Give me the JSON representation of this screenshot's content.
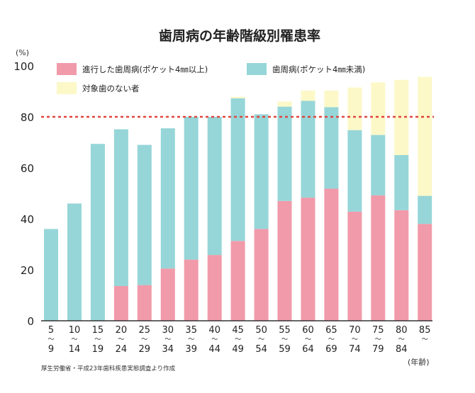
{
  "chart_data": {
    "type": "bar",
    "stacked": true,
    "title": "歯周病の年齢階級別罹患率",
    "ylabel": "(%)",
    "xlabel": "(年齢)",
    "ylim": [
      0,
      100
    ],
    "yticks": [
      0,
      20,
      40,
      60,
      80,
      100
    ],
    "grid": false,
    "legend_position": "top",
    "reference_line": {
      "value": 80,
      "style": "dotted",
      "color": "#e0463f"
    },
    "categories": [
      [
        "5",
        "〜",
        "9"
      ],
      [
        "10",
        "〜",
        "14"
      ],
      [
        "15",
        "〜",
        "19"
      ],
      [
        "20",
        "〜",
        "24"
      ],
      [
        "25",
        "〜",
        "29"
      ],
      [
        "30",
        "〜",
        "34"
      ],
      [
        "35",
        "〜",
        "39"
      ],
      [
        "40",
        "〜",
        "44"
      ],
      [
        "45",
        "〜",
        "49"
      ],
      [
        "50",
        "〜",
        "54"
      ],
      [
        "55",
        "〜",
        "59"
      ],
      [
        "60",
        "〜",
        "64"
      ],
      [
        "65",
        "〜",
        "69"
      ],
      [
        "70",
        "〜",
        "74"
      ],
      [
        "75",
        "〜",
        "79"
      ],
      [
        "80",
        "〜",
        "84"
      ],
      [
        "85",
        "〜",
        ""
      ]
    ],
    "series": [
      {
        "name": "進行した歯周病(ポケット4㎜以上)",
        "color": "#f19aaa",
        "values": [
          0,
          0,
          0,
          13.6,
          14.0,
          20.5,
          24.0,
          25.8,
          31.3,
          36.0,
          47.0,
          48.3,
          51.8,
          42.8,
          49.2,
          43.4,
          38.0
        ]
      },
      {
        "name": "歯周病(ポケット4㎜未満)",
        "color": "#96d6d8",
        "values": [
          36.0,
          46.0,
          69.4,
          61.5,
          55.0,
          55.0,
          56.0,
          54.2,
          56.0,
          45.0,
          37.0,
          38.0,
          32.0,
          32.0,
          23.7,
          21.6,
          11.0
        ]
      },
      {
        "name": "対象歯のない者",
        "color": "#fcf8c8",
        "values": [
          0,
          0,
          0,
          0,
          0,
          0,
          0,
          0,
          0.6,
          0,
          2.0,
          4.0,
          6.5,
          16.7,
          20.6,
          29.5,
          46.7
        ]
      }
    ],
    "source": "厚生労働省・平成23年歯科疾患実態調査より作成"
  }
}
